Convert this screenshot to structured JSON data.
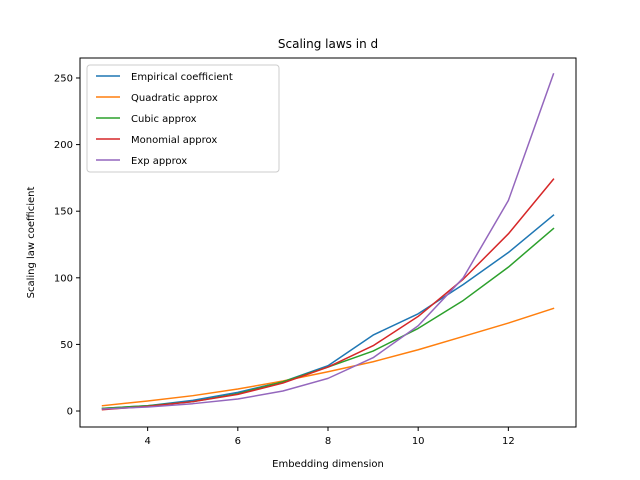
{
  "chart_data": {
    "type": "line",
    "title": "Scaling laws in d",
    "xlabel": "Embedding dimension",
    "ylabel": "Scaling law coefficient",
    "xlim": [
      2.5,
      13.5
    ],
    "ylim": [
      -12,
      265
    ],
    "xticks": [
      4,
      6,
      8,
      10,
      12
    ],
    "yticks": [
      0,
      50,
      100,
      150,
      200,
      250
    ],
    "grid": false,
    "legend_position": "upper left",
    "x": [
      3,
      4,
      5,
      6,
      7,
      8,
      9,
      10,
      11,
      12,
      13
    ],
    "series": [
      {
        "name": "Empirical coefficient",
        "color": "#1f77b4",
        "values": [
          2,
          4,
          8,
          14,
          22,
          34,
          57,
          73,
          95,
          119,
          147
        ]
      },
      {
        "name": "Quadratic approx",
        "color": "#ff7f0e",
        "values": [
          4,
          7.5,
          11.5,
          16.5,
          22.5,
          29.5,
          37,
          46,
          56,
          66,
          77
        ]
      },
      {
        "name": "Cubic approx",
        "color": "#2ca02c",
        "values": [
          2,
          4,
          7,
          13,
          22,
          33,
          45,
          62,
          83,
          108,
          137
        ]
      },
      {
        "name": "Monomial approx",
        "color": "#d62728",
        "values": [
          1,
          3.5,
          7,
          12.5,
          21,
          33,
          49,
          71,
          99,
          133,
          174
        ]
      },
      {
        "name": "Exp approx",
        "color": "#9467bd",
        "values": [
          1.5,
          3,
          5.5,
          9,
          15,
          24.5,
          40,
          64,
          100,
          158,
          253
        ]
      }
    ]
  }
}
